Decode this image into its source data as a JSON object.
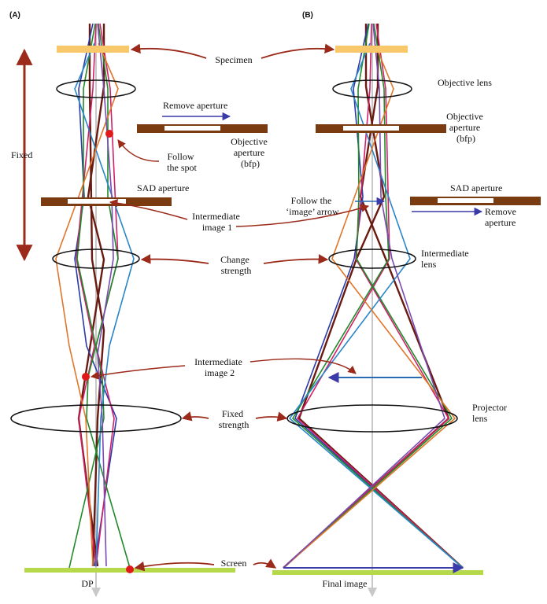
{
  "panel_a": {
    "label": "(A)"
  },
  "panel_b": {
    "label": "(B)"
  },
  "labels": {
    "specimen": "Specimen",
    "objective_lens": "Objective lens",
    "remove_aperture": "Remove aperture",
    "objective_aperture_left": [
      "Objective",
      "aperture",
      "(bfp)"
    ],
    "objective_aperture_right": [
      "Objective",
      "aperture",
      "(bfp)"
    ],
    "follow_spot": [
      "Follow",
      "the spot"
    ],
    "fixed": "Fixed",
    "sad_aperture_left": "SAD aperture",
    "sad_aperture_right": "SAD aperture",
    "follow_image_arrow": [
      "Follow the",
      "‘image’ arrow"
    ],
    "intermediate_image_1": [
      "Intermediate",
      "image 1"
    ],
    "remove_aperture_right": [
      "Remove",
      "aperture"
    ],
    "change_strength": [
      "Change",
      "strength"
    ],
    "intermediate_lens": [
      "Intermediate",
      "lens"
    ],
    "intermediate_image_2": [
      "Intermediate",
      "image 2"
    ],
    "fixed_strength": [
      "Fixed",
      "strength"
    ],
    "projector_lens": [
      "Projector",
      "lens"
    ],
    "screen": "Screen",
    "dp": "DP",
    "final_image": "Final image"
  },
  "colors": {
    "specimen": "#f9c86a",
    "aperture": "#7a3b10",
    "screen": "#b6d94c",
    "arrow_red": "#9b2a1a",
    "arrow_blue": "#3a3aa8",
    "axis": "#c8c8c8",
    "spot": "#e01a1a",
    "rays": [
      "#6a1a10",
      "#2a3aa8",
      "#d0206a",
      "#208a2a",
      "#2a86c8",
      "#e0762a",
      "#7a4ab0"
    ]
  }
}
